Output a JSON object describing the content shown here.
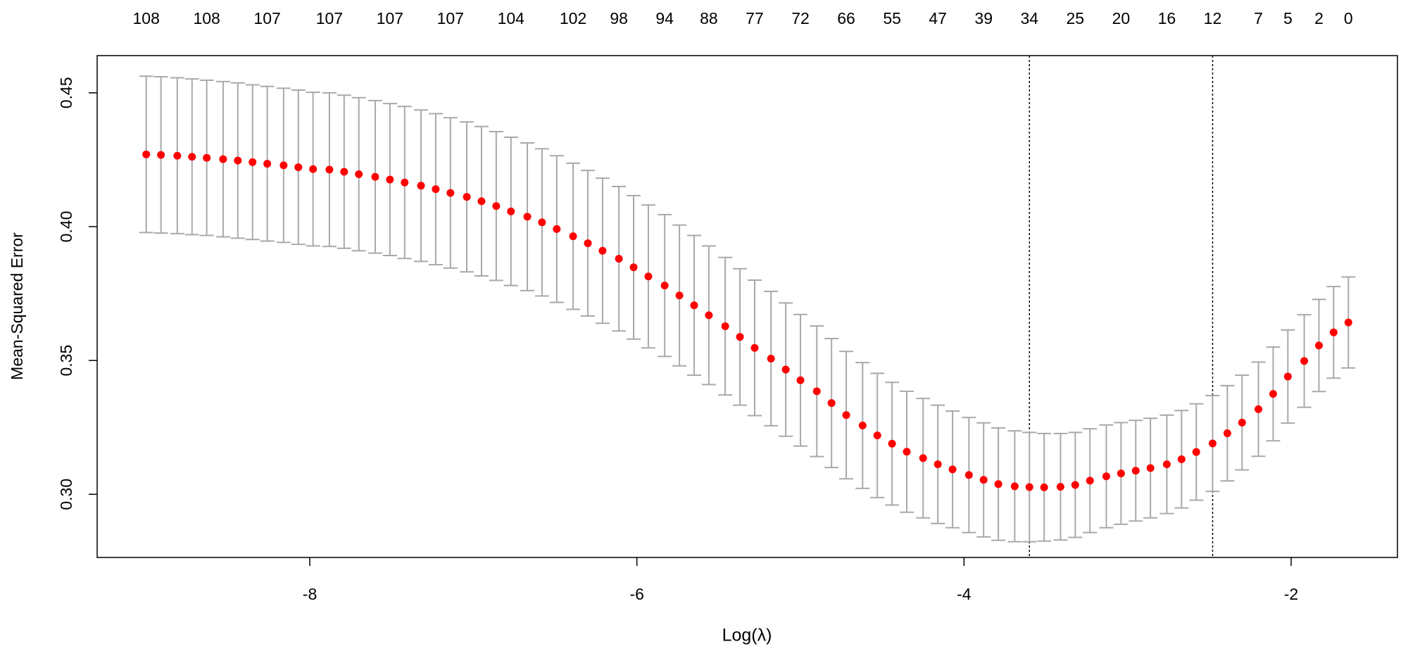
{
  "chart_data": {
    "type": "errorbar",
    "xlabel": "Log(λ)",
    "ylabel": "Mean-Squared Error",
    "xlim": [
      -9.3,
      -1.35
    ],
    "ylim": [
      0.2764,
      0.4639
    ],
    "xticks": [
      -8,
      -6,
      -4,
      -2
    ],
    "yticks": [
      {
        "value": 0.3,
        "label": "0.30"
      },
      0.35,
      {
        "value": 0.4,
        "label": "0.40"
      },
      0.45
    ],
    "x2ticks": [
      {
        "value": -9.0,
        "label": "108"
      },
      {
        "value": -8.63,
        "label": "108"
      },
      {
        "value": -8.26,
        "label": "107"
      },
      {
        "value": -7.88,
        "label": "107"
      },
      {
        "value": -7.51,
        "label": "107"
      },
      {
        "value": -7.14,
        "label": "107"
      },
      {
        "value": -6.77,
        "label": "104"
      },
      {
        "value": -6.39,
        "label": "102"
      },
      {
        "value": -6.11,
        "label": "98"
      },
      {
        "value": -5.83,
        "label": "94"
      },
      {
        "value": -5.56,
        "label": "88"
      },
      {
        "value": -5.28,
        "label": "77"
      },
      {
        "value": -5.0,
        "label": "72"
      },
      {
        "value": -4.72,
        "label": "66"
      },
      {
        "value": -4.44,
        "label": "55"
      },
      {
        "value": -4.16,
        "label": "47"
      },
      {
        "value": -3.88,
        "label": "39"
      },
      {
        "value": -3.6,
        "label": "34"
      },
      {
        "value": -3.32,
        "label": "25"
      },
      {
        "value": -3.04,
        "label": "20"
      },
      {
        "value": -2.76,
        "label": "16"
      },
      {
        "value": -2.48,
        "label": "12"
      },
      {
        "value": -2.2,
        "label": "7"
      },
      {
        "value": -2.02,
        "label": "5"
      },
      {
        "value": -1.83,
        "label": "2"
      },
      {
        "value": -1.65,
        "label": "0"
      }
    ],
    "vlines": [
      -3.6,
      -2.48
    ],
    "color": "#ff0000",
    "error_color": "#a9a9a9",
    "x": [
      -9.0,
      -8.91,
      -8.81,
      -8.72,
      -8.63,
      -8.53,
      -8.44,
      -8.35,
      -8.26,
      -8.16,
      -8.07,
      -7.98,
      -7.88,
      -7.79,
      -7.7,
      -7.6,
      -7.51,
      -7.42,
      -7.32,
      -7.23,
      -7.14,
      -7.04,
      -6.95,
      -6.86,
      -6.77,
      -6.67,
      -6.58,
      -6.49,
      -6.39,
      -6.3,
      -6.21,
      -6.11,
      -6.02,
      -5.93,
      -5.83,
      -5.74,
      -5.65,
      -5.56,
      -5.46,
      -5.37,
      -5.28,
      -5.18,
      -5.09,
      -5.0,
      -4.9,
      -4.81,
      -4.72,
      -4.62,
      -4.53,
      -4.44,
      -4.35,
      -4.25,
      -4.16,
      -4.07,
      -3.97,
      -3.88,
      -3.79,
      -3.69,
      -3.6,
      -3.51,
      -3.41,
      -3.32,
      -3.23,
      -3.13,
      -3.04,
      -2.95,
      -2.86,
      -2.76,
      -2.67,
      -2.58,
      -2.48,
      -2.39,
      -2.3,
      -2.2,
      -2.11,
      -2.02,
      -1.92,
      -1.83,
      -1.74,
      -1.65
    ],
    "values": [
      0.427,
      0.4268,
      0.4265,
      0.4261,
      0.4257,
      0.4252,
      0.4247,
      0.4241,
      0.4235,
      0.4229,
      0.4222,
      0.4215,
      0.4213,
      0.4205,
      0.4196,
      0.4186,
      0.4176,
      0.4165,
      0.4153,
      0.414,
      0.4126,
      0.4111,
      0.4095,
      0.4077,
      0.4057,
      0.4037,
      0.4016,
      0.3991,
      0.3964,
      0.3938,
      0.391,
      0.388,
      0.3848,
      0.3814,
      0.378,
      0.3743,
      0.3706,
      0.3669,
      0.3628,
      0.3588,
      0.3547,
      0.3507,
      0.3466,
      0.3426,
      0.3385,
      0.3341,
      0.3296,
      0.3257,
      0.322,
      0.3189,
      0.3159,
      0.3135,
      0.3112,
      0.3093,
      0.3072,
      0.3054,
      0.3038,
      0.303,
      0.3027,
      0.3026,
      0.3028,
      0.3035,
      0.3051,
      0.3067,
      0.3078,
      0.3088,
      0.3098,
      0.3112,
      0.3131,
      0.3158,
      0.319,
      0.3228,
      0.3268,
      0.3318,
      0.3375,
      0.344,
      0.3498,
      0.3556,
      0.3605,
      0.3642
    ],
    "errors": [
      0.0292,
      0.0292,
      0.0291,
      0.0291,
      0.029,
      0.029,
      0.029,
      0.0289,
      0.0289,
      0.0288,
      0.0288,
      0.0287,
      0.0287,
      0.0286,
      0.0286,
      0.0285,
      0.0284,
      0.0284,
      0.0283,
      0.0282,
      0.0281,
      0.028,
      0.0279,
      0.0278,
      0.0277,
      0.0276,
      0.0275,
      0.0274,
      0.0273,
      0.0272,
      0.0271,
      0.027,
      0.0268,
      0.0267,
      0.0265,
      0.0263,
      0.0261,
      0.0259,
      0.0257,
      0.0255,
      0.0253,
      0.0251,
      0.0249,
      0.0246,
      0.0244,
      0.0241,
      0.0238,
      0.0235,
      0.0232,
      0.0229,
      0.0226,
      0.0223,
      0.0221,
      0.0218,
      0.0215,
      0.0213,
      0.021,
      0.0207,
      0.0204,
      0.0201,
      0.0199,
      0.0196,
      0.0194,
      0.0192,
      0.019,
      0.0188,
      0.0186,
      0.0184,
      0.0182,
      0.018,
      0.0179,
      0.0178,
      0.0177,
      0.0176,
      0.0175,
      0.0174,
      0.0173,
      0.0172,
      0.0171,
      0.017
    ]
  }
}
